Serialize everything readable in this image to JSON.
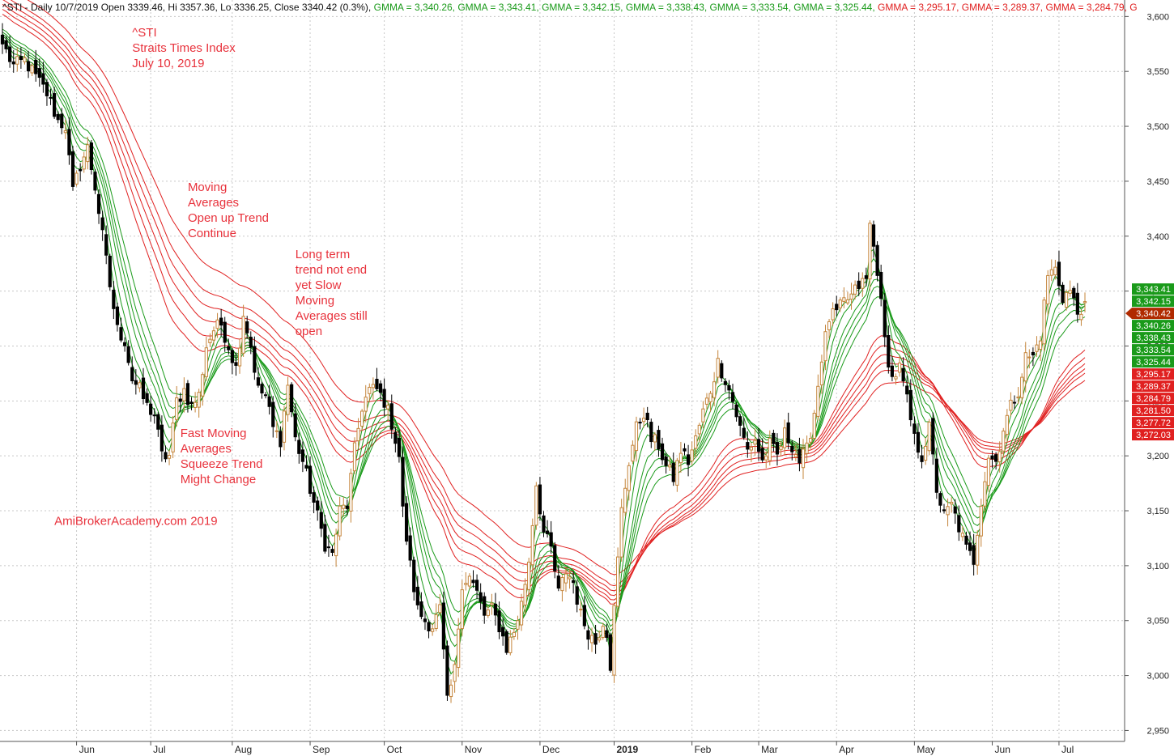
{
  "header": {
    "prefix": "^STI - Daily 10/7/2019 Open 3339.46, Hi 3357.36, Lo 3336.25, Close 3340.42 (0.3%)",
    "gmma": [
      {
        "text": "GMMA = 3,340.26,",
        "color": "#1a9a1a"
      },
      {
        "text": "GMMA = 3,343.41,",
        "color": "#1a9a1a"
      },
      {
        "text": "GMMA = 3,342.15,",
        "color": "#1a9a1a"
      },
      {
        "text": "GMMA = 3,338.43,",
        "color": "#1a9a1a"
      },
      {
        "text": "GMMA = 3,333.54,",
        "color": "#1a9a1a"
      },
      {
        "text": "GMMA = 3,325.44,",
        "color": "#1a9a1a"
      },
      {
        "text": "GMMA = 3,295.17,",
        "color": "#e02020"
      },
      {
        "text": "GMMA = 3,289.37,",
        "color": "#e02020"
      },
      {
        "text": "GMMA = 3,284.79,",
        "color": "#e02020"
      },
      {
        "text": "G",
        "color": "#e02020"
      }
    ]
  },
  "annotations": [
    {
      "lines": [
        "^STI",
        "Straits Times Index",
        "July 10, 2019"
      ],
      "anchor_day": 35,
      "anchor_price": 3582
    },
    {
      "lines": [
        "Moving",
        "Averages",
        "Open up Trend",
        "Continue"
      ],
      "anchor_day": 50,
      "anchor_price": 3441
    },
    {
      "lines": [
        "Long term",
        "trend not end",
        "yet Slow",
        "Moving",
        "Averages still",
        "open"
      ],
      "anchor_day": 79,
      "anchor_price": 3380
    },
    {
      "lines": [
        "Fast Moving",
        "Averages",
        "Squeeze Trend",
        "Might Change"
      ],
      "anchor_day": 48,
      "anchor_price": 3217
    },
    {
      "lines": [
        "AmiBrokerAcademy.com  2019"
      ],
      "anchor_day": 14,
      "anchor_price": 3137
    }
  ],
  "chart_data": {
    "type": "candlestick",
    "symbol": "^STI",
    "interval": "Daily",
    "last_bar": {
      "date": "10/7/2019",
      "open": 3339.46,
      "high": 3357.36,
      "low": 3336.25,
      "close": 3340.42,
      "change": "0.3%"
    },
    "ylim": [
      2940,
      3615
    ],
    "y_ticks": [
      {
        "value": 2950,
        "label": "2,950"
      },
      {
        "value": 3000,
        "label": "3,000"
      },
      {
        "value": 3050,
        "label": "3,050"
      },
      {
        "value": 3100,
        "label": "3,100"
      },
      {
        "value": 3150,
        "label": "3,150"
      },
      {
        "value": 3200,
        "label": "3,200"
      },
      {
        "value": 3250,
        "label": "3,250"
      },
      {
        "value": 3300,
        "label": "3,300"
      },
      {
        "value": 3350,
        "label": "3,350"
      },
      {
        "value": 3400,
        "label": "3,400"
      },
      {
        "value": 3450,
        "label": "3,450"
      },
      {
        "value": 3500,
        "label": "3,500"
      },
      {
        "value": 3550,
        "label": "3,550"
      },
      {
        "value": 3600,
        "label": "3,600"
      }
    ],
    "x_ticks": [
      {
        "day": 20,
        "label": "Jun"
      },
      {
        "day": 40,
        "label": "Jul"
      },
      {
        "day": 62,
        "label": "Aug"
      },
      {
        "day": 83,
        "label": "Sep"
      },
      {
        "day": 103,
        "label": "Oct"
      },
      {
        "day": 124,
        "label": "Nov"
      },
      {
        "day": 145,
        "label": "Dec"
      },
      {
        "day": 165,
        "label": "2019",
        "bold": true
      },
      {
        "day": 186,
        "label": "Feb"
      },
      {
        "day": 204,
        "label": "Mar"
      },
      {
        "day": 225,
        "label": "Apr"
      },
      {
        "day": 246,
        "label": "May"
      },
      {
        "day": 267,
        "label": "Jun"
      },
      {
        "day": 285,
        "label": "Jul"
      }
    ],
    "num_days": 293,
    "close_anchors": [
      [
        0,
        3575
      ],
      [
        3,
        3555
      ],
      [
        6,
        3560
      ],
      [
        9,
        3545
      ],
      [
        12,
        3530
      ],
      [
        15,
        3505
      ],
      [
        17,
        3500
      ],
      [
        19,
        3440
      ],
      [
        21,
        3465
      ],
      [
        23,
        3480
      ],
      [
        25,
        3445
      ],
      [
        27,
        3400
      ],
      [
        29,
        3355
      ],
      [
        31,
        3315
      ],
      [
        33,
        3305
      ],
      [
        35,
        3270
      ],
      [
        37,
        3260
      ],
      [
        39,
        3245
      ],
      [
        41,
        3238
      ],
      [
        43,
        3200
      ],
      [
        45,
        3200
      ],
      [
        47,
        3250
      ],
      [
        49,
        3260
      ],
      [
        51,
        3245
      ],
      [
        53,
        3255
      ],
      [
        55,
        3300
      ],
      [
        57,
        3315
      ],
      [
        59,
        3320
      ],
      [
        61,
        3300
      ],
      [
        63,
        3280
      ],
      [
        65,
        3330
      ],
      [
        67,
        3300
      ],
      [
        69,
        3260
      ],
      [
        71,
        3255
      ],
      [
        73,
        3225
      ],
      [
        75,
        3215
      ],
      [
        77,
        3265
      ],
      [
        79,
        3215
      ],
      [
        81,
        3195
      ],
      [
        83,
        3170
      ],
      [
        85,
        3145
      ],
      [
        87,
        3120
      ],
      [
        89,
        3110
      ],
      [
        91,
        3150
      ],
      [
        93,
        3155
      ],
      [
        95,
        3205
      ],
      [
        97,
        3245
      ],
      [
        99,
        3260
      ],
      [
        101,
        3260
      ],
      [
        103,
        3250
      ],
      [
        105,
        3230
      ],
      [
        107,
        3200
      ],
      [
        108,
        3150
      ],
      [
        110,
        3100
      ],
      [
        112,
        3060
      ],
      [
        114,
        3050
      ],
      [
        116,
        3045
      ],
      [
        118,
        3060
      ],
      [
        119,
        3020
      ],
      [
        120,
        2975
      ],
      [
        122,
        3005
      ],
      [
        124,
        3085
      ],
      [
        126,
        3090
      ],
      [
        128,
        3075
      ],
      [
        130,
        3055
      ],
      [
        132,
        3060
      ],
      [
        134,
        3045
      ],
      [
        136,
        3025
      ],
      [
        138,
        3040
      ],
      [
        140,
        3065
      ],
      [
        142,
        3105
      ],
      [
        144,
        3175
      ],
      [
        146,
        3130
      ],
      [
        148,
        3115
      ],
      [
        150,
        3075
      ],
      [
        152,
        3095
      ],
      [
        154,
        3085
      ],
      [
        156,
        3055
      ],
      [
        158,
        3040
      ],
      [
        160,
        3030
      ],
      [
        162,
        3050
      ],
      [
        163,
        3040
      ],
      [
        164,
        3010
      ],
      [
        165,
        3060
      ],
      [
        167,
        3150
      ],
      [
        169,
        3195
      ],
      [
        171,
        3225
      ],
      [
        173,
        3240
      ],
      [
        175,
        3215
      ],
      [
        177,
        3210
      ],
      [
        179,
        3190
      ],
      [
        181,
        3180
      ],
      [
        183,
        3205
      ],
      [
        185,
        3195
      ],
      [
        187,
        3215
      ],
      [
        189,
        3240
      ],
      [
        191,
        3260
      ],
      [
        193,
        3285
      ],
      [
        195,
        3270
      ],
      [
        197,
        3250
      ],
      [
        199,
        3225
      ],
      [
        201,
        3205
      ],
      [
        203,
        3215
      ],
      [
        205,
        3195
      ],
      [
        207,
        3210
      ],
      [
        209,
        3200
      ],
      [
        211,
        3220
      ],
      [
        213,
        3210
      ],
      [
        215,
        3195
      ],
      [
        217,
        3205
      ],
      [
        219,
        3240
      ],
      [
        221,
        3290
      ],
      [
        223,
        3325
      ],
      [
        225,
        3330
      ],
      [
        227,
        3340
      ],
      [
        229,
        3345
      ],
      [
        231,
        3355
      ],
      [
        233,
        3360
      ],
      [
        234,
        3410
      ],
      [
        236,
        3370
      ],
      [
        238,
        3305
      ],
      [
        240,
        3270
      ],
      [
        242,
        3280
      ],
      [
        244,
        3250
      ],
      [
        246,
        3215
      ],
      [
        248,
        3200
      ],
      [
        250,
        3225
      ],
      [
        252,
        3170
      ],
      [
        254,
        3145
      ],
      [
        256,
        3155
      ],
      [
        258,
        3135
      ],
      [
        260,
        3115
      ],
      [
        262,
        3105
      ],
      [
        264,
        3160
      ],
      [
        266,
        3200
      ],
      [
        268,
        3195
      ],
      [
        270,
        3225
      ],
      [
        272,
        3245
      ],
      [
        274,
        3260
      ],
      [
        276,
        3290
      ],
      [
        278,
        3290
      ],
      [
        280,
        3310
      ],
      [
        282,
        3365
      ],
      [
        284,
        3370
      ],
      [
        286,
        3345
      ],
      [
        288,
        3350
      ],
      [
        290,
        3330
      ],
      [
        292,
        3340.42
      ]
    ],
    "gmma_short_periods": [
      3,
      5,
      8,
      10,
      12,
      15
    ],
    "gmma_long_periods": [
      30,
      35,
      40,
      45,
      50,
      60
    ],
    "price_tags": [
      {
        "value": "3,343.41",
        "color": "#1a9a1a"
      },
      {
        "value": "3,342.15",
        "color": "#1a9a1a"
      },
      {
        "value": "3,340.42",
        "color": "#b02a00",
        "pointer": true
      },
      {
        "value": "3,340.26",
        "color": "#1a9a1a"
      },
      {
        "value": "3,338.43",
        "color": "#1a9a1a"
      },
      {
        "value": "3,333.54",
        "color": "#1a9a1a"
      },
      {
        "value": "3,325.44",
        "color": "#1a9a1a"
      },
      {
        "value": "3,295.17",
        "color": "#e02020"
      },
      {
        "value": "3,289.37",
        "color": "#e02020"
      },
      {
        "value": "3,284.79",
        "color": "#e02020"
      },
      {
        "value": "3,281.50",
        "color": "#e02020"
      },
      {
        "value": "3,277.72",
        "color": "#e02020"
      },
      {
        "value": "3,272.03",
        "color": "#e02020"
      }
    ],
    "colors": {
      "short_ma": "#1a9a1a",
      "long_ma": "#e02020",
      "up_candle": "#c4843a",
      "down_candle": "#000000",
      "grid": "#c8c8c8"
    }
  }
}
